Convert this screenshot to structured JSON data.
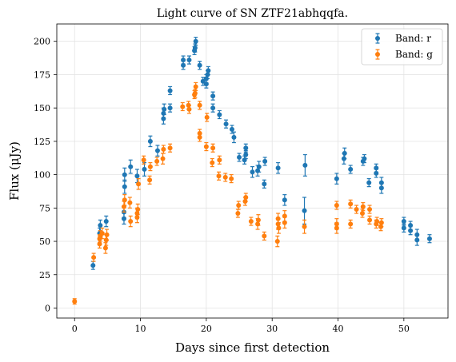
{
  "chart_data": {
    "type": "scatter",
    "title": "Light curve of SN ZTF21abhqqfa.",
    "xlabel": "Days since first detection",
    "ylabel": "Flux (μJy)",
    "xlim": [
      -2.7,
      56.7
    ],
    "ylim": [
      -7.5,
      213
    ],
    "xticks": [
      0,
      10,
      20,
      30,
      40,
      50
    ],
    "yticks": [
      0,
      25,
      50,
      75,
      100,
      125,
      150,
      175,
      200
    ],
    "grid": true,
    "legend_position": "top-right",
    "series": [
      {
        "name": "Band: r",
        "color": "#1f77b4",
        "points": [
          [
            2.8,
            32,
            3
          ],
          [
            3.8,
            56,
            4
          ],
          [
            3.9,
            62,
            4
          ],
          [
            4.8,
            65,
            4
          ],
          [
            7.5,
            67,
            4
          ],
          [
            7.5,
            72,
            4
          ],
          [
            7.6,
            91,
            5
          ],
          [
            7.6,
            100,
            5
          ],
          [
            8.5,
            106,
            5
          ],
          [
            9.5,
            99,
            5
          ],
          [
            10.6,
            104,
            5
          ],
          [
            11.5,
            125,
            4
          ],
          [
            12.6,
            118,
            4
          ],
          [
            13.5,
            142,
            4
          ],
          [
            13.5,
            146,
            4
          ],
          [
            13.6,
            149,
            4
          ],
          [
            14.5,
            150,
            3
          ],
          [
            14.5,
            163,
            3
          ],
          [
            16.5,
            182,
            3
          ],
          [
            16.5,
            186,
            3
          ],
          [
            17.4,
            186,
            3
          ],
          [
            18.2,
            193,
            3
          ],
          [
            18.3,
            195,
            3
          ],
          [
            18.4,
            200,
            3
          ],
          [
            19.0,
            182,
            3
          ],
          [
            19.5,
            170,
            3
          ],
          [
            20.0,
            168,
            3
          ],
          [
            20.0,
            172,
            3
          ],
          [
            20.2,
            175,
            3
          ],
          [
            20.3,
            178,
            3
          ],
          [
            21.0,
            150,
            3
          ],
          [
            21.0,
            159,
            3
          ],
          [
            22.0,
            145,
            3
          ],
          [
            23.0,
            138,
            3
          ],
          [
            23.9,
            134,
            3
          ],
          [
            24.2,
            128,
            4
          ],
          [
            25.0,
            113,
            3
          ],
          [
            25.8,
            111,
            3
          ],
          [
            26.0,
            115,
            3
          ],
          [
            26.0,
            120,
            3
          ],
          [
            27.0,
            102,
            4
          ],
          [
            27.8,
            103,
            4
          ],
          [
            28.0,
            106,
            4
          ],
          [
            28.8,
            93,
            3
          ],
          [
            28.9,
            110,
            3
          ],
          [
            30.9,
            105,
            4
          ],
          [
            31.9,
            81,
            4
          ],
          [
            34.9,
            73,
            10
          ],
          [
            35.0,
            107,
            8
          ],
          [
            39.8,
            97,
            4
          ],
          [
            40.9,
            112,
            4
          ],
          [
            41.0,
            116,
            4
          ],
          [
            41.9,
            104,
            3
          ],
          [
            43.8,
            110,
            3
          ],
          [
            44.0,
            112,
            3
          ],
          [
            44.7,
            94,
            3
          ],
          [
            45.8,
            101,
            3
          ],
          [
            45.8,
            105,
            3
          ],
          [
            46.6,
            90,
            4
          ],
          [
            46.6,
            94,
            4
          ],
          [
            50.0,
            60,
            3
          ],
          [
            50.0,
            65,
            3
          ],
          [
            51.0,
            58,
            3
          ],
          [
            51.0,
            62,
            3
          ],
          [
            52.0,
            51,
            4
          ],
          [
            52.0,
            55,
            4
          ],
          [
            53.9,
            52,
            3
          ]
        ]
      },
      {
        "name": "Band: g",
        "color": "#ff7f0e",
        "points": [
          [
            0.0,
            5,
            2
          ],
          [
            2.9,
            38,
            3
          ],
          [
            3.8,
            48,
            3
          ],
          [
            3.8,
            52,
            3
          ],
          [
            3.9,
            54,
            4
          ],
          [
            4.2,
            56,
            4
          ],
          [
            4.7,
            45,
            4
          ],
          [
            4.8,
            51,
            4
          ],
          [
            4.9,
            55,
            4
          ],
          [
            7.5,
            76,
            4
          ],
          [
            7.6,
            81,
            4
          ],
          [
            8.4,
            79,
            4
          ],
          [
            8.5,
            65,
            4
          ],
          [
            9.5,
            68,
            4
          ],
          [
            9.5,
            71,
            4
          ],
          [
            9.6,
            74,
            4
          ],
          [
            9.7,
            93,
            4
          ],
          [
            10.5,
            111,
            3
          ],
          [
            11.4,
            96,
            3
          ],
          [
            11.5,
            106,
            3
          ],
          [
            12.5,
            110,
            3
          ],
          [
            13.4,
            112,
            4
          ],
          [
            13.5,
            119,
            3
          ],
          [
            14.5,
            120,
            3
          ],
          [
            16.4,
            151,
            3
          ],
          [
            17.3,
            152,
            3
          ],
          [
            17.4,
            149,
            3
          ],
          [
            18.2,
            160,
            3
          ],
          [
            18.3,
            161,
            3
          ],
          [
            18.4,
            166,
            3
          ],
          [
            19.0,
            128,
            3
          ],
          [
            19.0,
            131,
            3
          ],
          [
            19.0,
            152,
            3
          ],
          [
            20.0,
            121,
            3
          ],
          [
            20.1,
            143,
            3
          ],
          [
            20.9,
            109,
            3
          ],
          [
            21.0,
            120,
            3
          ],
          [
            21.9,
            99,
            3
          ],
          [
            22.0,
            111,
            3
          ],
          [
            22.9,
            98,
            3
          ],
          [
            23.8,
            97,
            3
          ],
          [
            24.8,
            71,
            3
          ],
          [
            24.9,
            77,
            3
          ],
          [
            25.9,
            80,
            3
          ],
          [
            26.0,
            83,
            3
          ],
          [
            26.8,
            65,
            3
          ],
          [
            27.8,
            63,
            4
          ],
          [
            27.9,
            66,
            4
          ],
          [
            28.8,
            54,
            3
          ],
          [
            30.8,
            50,
            4
          ],
          [
            30.9,
            63,
            4
          ],
          [
            30.9,
            67,
            4
          ],
          [
            31.0,
            60,
            4
          ],
          [
            31.9,
            64,
            4
          ],
          [
            31.9,
            69,
            4
          ],
          [
            34.9,
            61,
            5
          ],
          [
            39.8,
            60,
            4
          ],
          [
            39.8,
            63,
            4
          ],
          [
            39.8,
            77,
            3
          ],
          [
            41.9,
            63,
            3
          ],
          [
            41.9,
            78,
            3
          ],
          [
            42.8,
            74,
            3
          ],
          [
            43.7,
            71,
            3
          ],
          [
            43.8,
            76,
            3
          ],
          [
            44.8,
            66,
            3
          ],
          [
            44.8,
            74,
            3
          ],
          [
            45.8,
            63,
            3
          ],
          [
            45.9,
            65,
            3
          ],
          [
            46.5,
            61,
            3
          ],
          [
            46.6,
            64,
            3
          ]
        ]
      }
    ]
  }
}
